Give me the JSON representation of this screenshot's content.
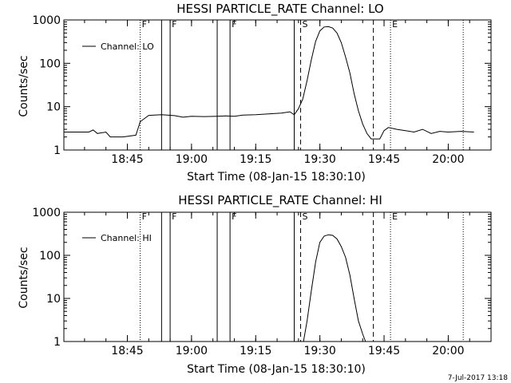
{
  "chart_data": [
    {
      "type": "line",
      "title": "HESSI PARTICLE_RATE Channel: LO",
      "xlabel": "Start Time (08-Jan-15 18:30:10)",
      "ylabel": "Counts/sec",
      "y_scale": "log",
      "ylim": [
        1,
        1000
      ],
      "xlim": [
        "18:30:10",
        "20:10:00"
      ],
      "x_ticks": [
        "18:45",
        "19:00",
        "19:15",
        "19:30",
        "19:45",
        "20:00"
      ],
      "y_ticks": [
        "1",
        "10",
        "100",
        "1000"
      ],
      "legend": {
        "position": "top-left",
        "entries": [
          "Channel: LO"
        ]
      },
      "series": [
        {
          "name": "Channel: LO",
          "x": [
            "18:30:10",
            "18:33:00",
            "18:36:00",
            "18:37:00",
            "18:38:00",
            "18:40:00",
            "18:41:00",
            "18:44:00",
            "18:47:00",
            "18:48:00",
            "18:50:00",
            "18:53:00",
            "18:56:00",
            "18:58:00",
            "19:00:00",
            "19:03:00",
            "19:06:00",
            "19:08:00",
            "19:10:00",
            "19:12:00",
            "19:15:00",
            "19:18:00",
            "19:21:00",
            "19:23:00",
            "19:24:00",
            "19:25:00",
            "19:26:00",
            "19:27:00",
            "19:28:00",
            "19:29:00",
            "19:30:00",
            "19:31:00",
            "19:32:00",
            "19:33:00",
            "19:34:00",
            "19:35:00",
            "19:36:00",
            "19:37:00",
            "19:38:00",
            "19:39:00",
            "19:40:00",
            "19:41:00",
            "19:42:00",
            "19:43:00",
            "19:44:00",
            "19:45:00",
            "19:46:00",
            "19:48:00",
            "19:50:00",
            "19:52:00",
            "19:54:00",
            "19:56:00",
            "19:58:00",
            "20:00:00",
            "20:03:00",
            "20:06:00"
          ],
          "values": [
            2.6,
            2.6,
            2.6,
            2.9,
            2.4,
            2.6,
            2.0,
            2.0,
            2.2,
            4.5,
            6.3,
            6.5,
            6.2,
            5.7,
            6.0,
            5.9,
            6.0,
            6.1,
            6.0,
            6.4,
            6.5,
            6.8,
            7.1,
            7.6,
            6.5,
            9.0,
            15,
            40,
            120,
            320,
            560,
            690,
            700,
            650,
            500,
            300,
            140,
            60,
            20,
            8,
            4,
            2.4,
            1.8,
            1.8,
            1.8,
            2.8,
            3.3,
            3.0,
            2.8,
            2.6,
            3.0,
            2.4,
            2.7,
            2.6,
            2.7,
            2.6
          ]
        }
      ],
      "annotations": [
        {
          "label": "F",
          "time": "18:48:00",
          "style": "dotted"
        },
        {
          "label": "",
          "time": "18:53:00",
          "style": "solid"
        },
        {
          "label": "F",
          "time": "18:55:00",
          "style": "solid"
        },
        {
          "label": "",
          "time": "19:06:00",
          "style": "solid"
        },
        {
          "label": "F",
          "time": "19:09:00",
          "style": "solid"
        },
        {
          "label": "",
          "time": "19:24:00",
          "style": "solid"
        },
        {
          "label": "S",
          "time": "19:25:30",
          "style": "dashed"
        },
        {
          "label": "",
          "time": "19:42:30",
          "style": "dashed"
        },
        {
          "label": "E",
          "time": "19:46:30",
          "style": "dotted"
        },
        {
          "label": "",
          "time": "20:03:30",
          "style": "dotted"
        }
      ]
    },
    {
      "type": "line",
      "title": "HESSI PARTICLE_RATE Channel: HI",
      "xlabel": "Start Time (08-Jan-15 18:30:10)",
      "ylabel": "Counts/sec",
      "y_scale": "log",
      "ylim": [
        1,
        1000
      ],
      "xlim": [
        "18:30:10",
        "20:10:00"
      ],
      "x_ticks": [
        "18:45",
        "19:00",
        "19:15",
        "19:30",
        "19:45",
        "20:00"
      ],
      "y_ticks": [
        "1",
        "10",
        "100",
        "1000"
      ],
      "legend": {
        "position": "top-left",
        "entries": [
          "Channel: HI"
        ]
      },
      "series": [
        {
          "name": "Channel: HI",
          "x": [
            "19:26:10",
            "19:27:00",
            "19:28:00",
            "19:29:00",
            "19:30:00",
            "19:31:00",
            "19:32:00",
            "19:33:00",
            "19:34:00",
            "19:35:00",
            "19:36:00",
            "19:37:00",
            "19:38:00",
            "19:39:00",
            "19:40:00",
            "19:40:40"
          ],
          "values": [
            1.0,
            3,
            15,
            70,
            200,
            280,
            300,
            290,
            240,
            160,
            90,
            35,
            10,
            3,
            1.5,
            1.0
          ]
        }
      ],
      "annotations": [
        {
          "label": "F",
          "time": "18:48:00",
          "style": "dotted"
        },
        {
          "label": "",
          "time": "18:53:00",
          "style": "solid"
        },
        {
          "label": "F",
          "time": "18:55:00",
          "style": "solid"
        },
        {
          "label": "",
          "time": "19:06:00",
          "style": "solid"
        },
        {
          "label": "F",
          "time": "19:09:00",
          "style": "solid"
        },
        {
          "label": "",
          "time": "19:24:00",
          "style": "solid"
        },
        {
          "label": "S",
          "time": "19:25:30",
          "style": "dashed"
        },
        {
          "label": "",
          "time": "19:42:30",
          "style": "dashed"
        },
        {
          "label": "E",
          "time": "19:46:30",
          "style": "dotted"
        },
        {
          "label": "",
          "time": "20:03:30",
          "style": "dotted"
        }
      ]
    }
  ],
  "footer": {
    "timestamp": "7-Jul-2017 13:18"
  }
}
